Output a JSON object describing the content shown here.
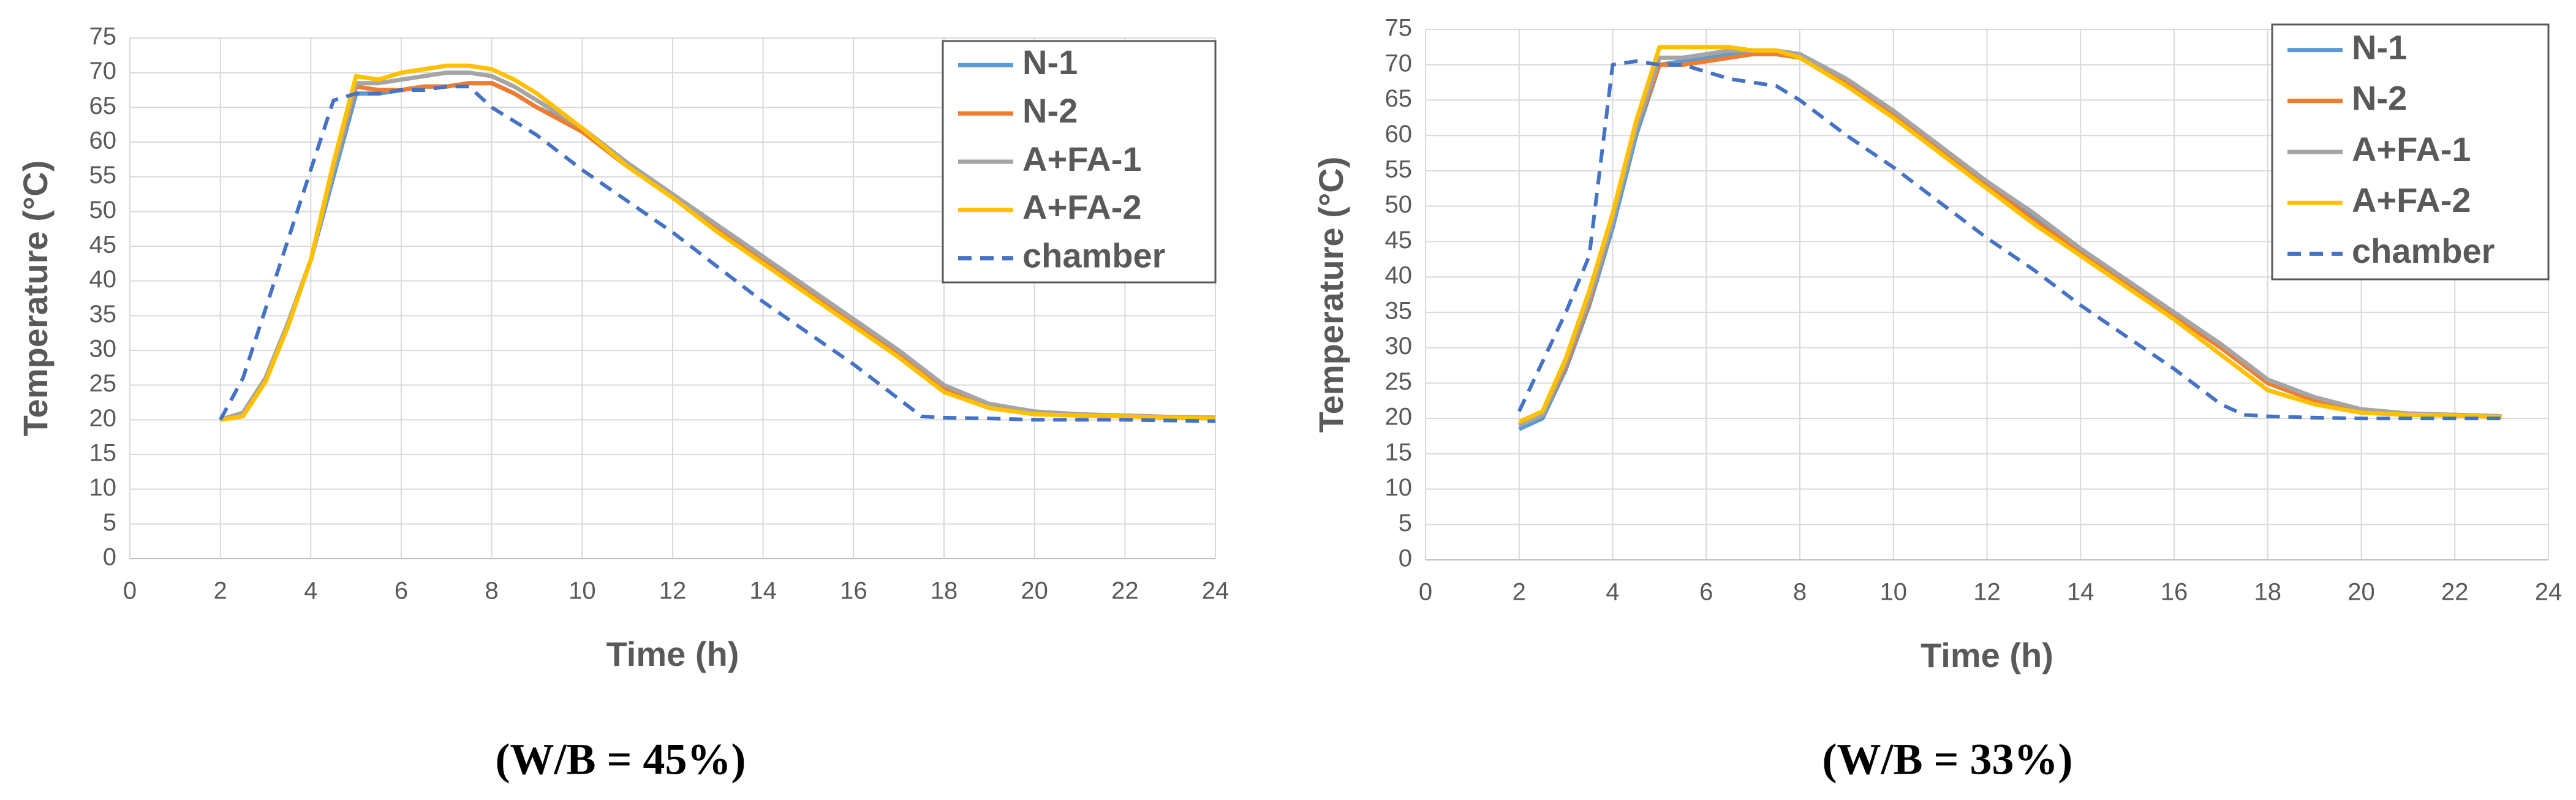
{
  "chart_data": [
    {
      "type": "line",
      "caption": "(W/B = 45%)",
      "xlabel": "Time (h)",
      "ylabel": "Temperature (°C)",
      "xlim": [
        0,
        24
      ],
      "xticks": [
        0,
        2,
        4,
        6,
        8,
        10,
        12,
        14,
        16,
        18,
        20,
        22,
        24
      ],
      "ylim": [
        0,
        75
      ],
      "yticks": [
        0,
        5,
        10,
        15,
        20,
        25,
        30,
        35,
        40,
        45,
        50,
        55,
        60,
        65,
        70,
        75
      ],
      "grid": true,
      "legend": "upper right",
      "x": [
        2,
        2.5,
        3,
        3.5,
        4,
        4.5,
        5,
        5.5,
        6,
        6.5,
        7,
        7.5,
        8,
        8.5,
        9,
        10,
        11,
        12,
        13,
        14,
        15,
        16,
        17,
        17.5,
        18,
        19,
        20,
        21,
        22,
        23,
        24
      ],
      "series": [
        {
          "name": "N-1",
          "color": "#5b9bd5",
          "dashed": false,
          "values": [
            20,
            21,
            26,
            34,
            43,
            55,
            67,
            67,
            67.5,
            68,
            68,
            68.5,
            68.5,
            67,
            65,
            62,
            57,
            52,
            47.5,
            43,
            38.5,
            34,
            29.5,
            27,
            24.5,
            22,
            21,
            20.7,
            20.6,
            20.4,
            20.3
          ]
        },
        {
          "name": "N-2",
          "color": "#ed7d31",
          "dashed": false,
          "values": [
            20,
            21,
            26,
            34,
            43,
            56,
            68,
            67.5,
            67.5,
            68,
            68,
            68.5,
            68.5,
            67,
            65,
            61.5,
            56.5,
            52,
            47.5,
            43,
            38.5,
            34,
            29.5,
            27,
            24.5,
            22,
            21,
            20.7,
            20.6,
            20.4,
            20.3
          ]
        },
        {
          "name": "A+FA-1",
          "color": "#a5a5a5",
          "dashed": false,
          "values": [
            20,
            21,
            26,
            34,
            43,
            56,
            68.5,
            68.5,
            69,
            69.5,
            70,
            70,
            69.5,
            68,
            66,
            62,
            57,
            52.5,
            48,
            43.5,
            39,
            34.5,
            30,
            27.5,
            25,
            22.3,
            21.2,
            20.8,
            20.6,
            20.4,
            20.3
          ]
        },
        {
          "name": "A+FA-2",
          "color": "#ffc000",
          "dashed": false,
          "values": [
            20,
            20.5,
            25.5,
            33.5,
            43,
            57,
            69.5,
            69,
            70,
            70.5,
            71,
            71,
            70.5,
            69,
            67,
            62,
            56.5,
            52,
            47,
            42.5,
            38,
            33.5,
            29,
            26.5,
            24,
            21.7,
            20.8,
            20.6,
            20.5,
            20.3,
            20.2
          ]
        },
        {
          "name": "chamber",
          "color": "#4472c4",
          "dashed": true,
          "values": [
            20,
            26,
            36,
            46,
            56,
            66,
            67,
            67,
            67.5,
            67.5,
            68,
            68,
            65,
            63,
            61,
            56,
            51.5,
            47,
            42,
            37,
            32.5,
            28,
            23,
            20.5,
            20.3,
            20.2,
            20,
            20,
            20,
            19.9,
            19.8
          ]
        }
      ]
    },
    {
      "type": "line",
      "caption": "(W/B = 33%)",
      "xlabel": "Time (h)",
      "ylabel": "Temperature (°C)",
      "xlim": [
        0,
        24
      ],
      "xticks": [
        0,
        2,
        4,
        6,
        8,
        10,
        12,
        14,
        16,
        18,
        20,
        22,
        24
      ],
      "ylim": [
        0,
        75
      ],
      "yticks": [
        0,
        5,
        10,
        15,
        20,
        25,
        30,
        35,
        40,
        45,
        50,
        55,
        60,
        65,
        70,
        75
      ],
      "grid": true,
      "legend": "upper right",
      "x": [
        2,
        2.5,
        3,
        3.5,
        4,
        4.5,
        5,
        5.5,
        6,
        6.5,
        7,
        7.5,
        8,
        9,
        10,
        11,
        12,
        13,
        14,
        15,
        16,
        17,
        17.5,
        18,
        19,
        20,
        21,
        22,
        23
      ],
      "series": [
        {
          "name": "N-1",
          "color": "#5b9bd5",
          "dashed": false,
          "values": [
            18.5,
            20,
            27,
            36,
            47,
            60,
            70,
            70.5,
            71,
            71.5,
            71.5,
            71.5,
            71,
            67.5,
            63,
            58,
            53,
            48.5,
            43.5,
            39,
            34.5,
            30,
            27.5,
            25,
            22.5,
            21,
            20.5,
            20.5,
            20.3
          ]
        },
        {
          "name": "N-2",
          "color": "#ed7d31",
          "dashed": false,
          "values": [
            19,
            20.5,
            27.5,
            36.5,
            48,
            61,
            70,
            70,
            70.5,
            71,
            71.5,
            71.5,
            71,
            67.5,
            63,
            58,
            53,
            48,
            43.5,
            39,
            34.5,
            30,
            27.5,
            25,
            22.5,
            21,
            20.5,
            20.5,
            20.3
          ]
        },
        {
          "name": "A+FA-1",
          "color": "#a5a5a5",
          "dashed": false,
          "values": [
            19,
            20.5,
            28,
            37,
            48,
            61,
            71,
            71,
            71.5,
            72,
            72,
            72,
            71.5,
            68,
            63.5,
            58.5,
            53.5,
            49,
            44,
            39.5,
            35,
            30.5,
            28,
            25.5,
            23,
            21.3,
            20.7,
            20.5,
            20.3
          ]
        },
        {
          "name": "A+FA-2",
          "color": "#ffc000",
          "dashed": false,
          "values": [
            19.5,
            21,
            28.5,
            38,
            49,
            62,
            72.5,
            72.5,
            72.5,
            72.5,
            72,
            72,
            71,
            67,
            62.5,
            57.5,
            52.5,
            47.5,
            43,
            38.5,
            34,
            29,
            26.5,
            24,
            22,
            20.8,
            20.5,
            20.4,
            20.2
          ]
        },
        {
          "name": "chamber",
          "color": "#4472c4",
          "dashed": true,
          "values": [
            21,
            28,
            35,
            43,
            70,
            70.5,
            70,
            70,
            69,
            68,
            67.5,
            67,
            65,
            60,
            55.5,
            50.5,
            45.5,
            41,
            36,
            31.5,
            27,
            22,
            20.5,
            20.3,
            20.1,
            20,
            20,
            20,
            20
          ]
        }
      ]
    }
  ]
}
